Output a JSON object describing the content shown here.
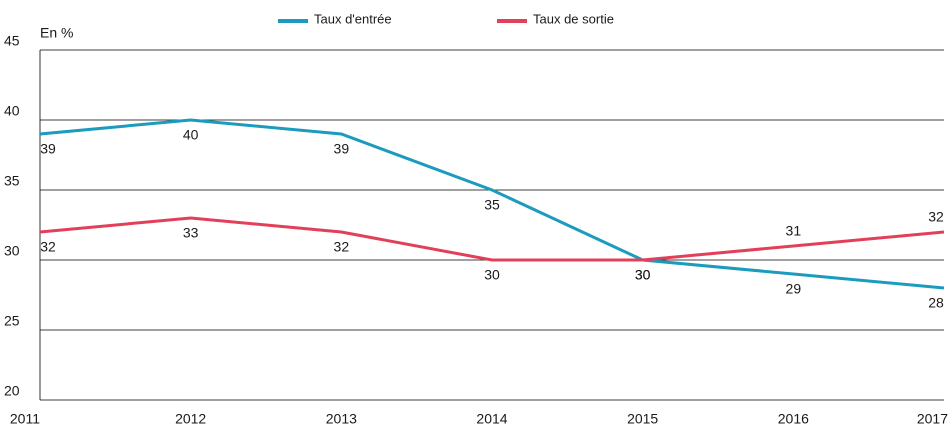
{
  "chart_data": {
    "type": "line",
    "ylabel": "En %",
    "x": [
      "2011",
      "2012",
      "2013",
      "2014",
      "2015",
      "2016",
      "2017"
    ],
    "series": [
      {
        "name": "Taux d'entrée",
        "color": "#1b9bbd",
        "values": [
          39,
          40,
          39,
          35,
          30,
          29,
          28
        ]
      },
      {
        "name": "Taux de sortie",
        "color": "#e2405a",
        "values": [
          32,
          33,
          32,
          30,
          30,
          31,
          32
        ]
      }
    ],
    "ylim": [
      20,
      45
    ],
    "yticks": [
      20,
      25,
      30,
      35,
      40,
      45
    ],
    "grid": true,
    "legend": "top"
  }
}
